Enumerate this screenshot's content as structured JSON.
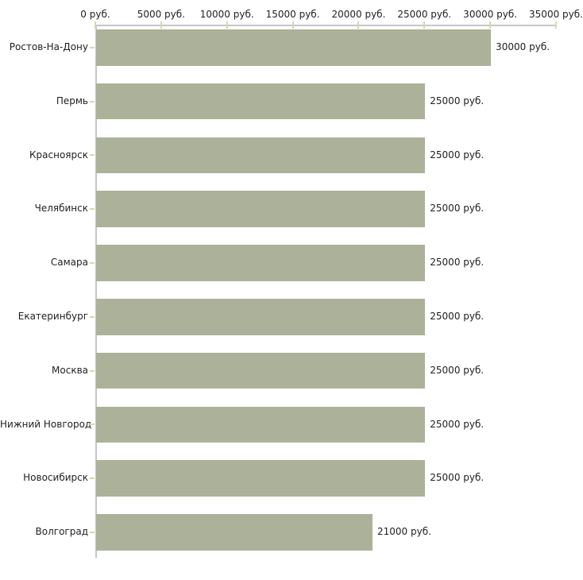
{
  "chart_data": {
    "type": "bar",
    "orientation": "horizontal",
    "title": "",
    "unit": "руб.",
    "categories": [
      "Ростов-На-Дону",
      "Пермь",
      "Красноярск",
      "Челябинск",
      "Самара",
      "Екатеринбург",
      "Москва",
      "Нижний Новгород",
      "Новосибирск",
      "Волгоград"
    ],
    "values": [
      30000,
      25000,
      25000,
      25000,
      25000,
      25000,
      25000,
      25000,
      25000,
      21000
    ],
    "value_labels": [
      "30000 руб.",
      "25000 руб.",
      "25000 руб.",
      "25000 руб.",
      "25000 руб.",
      "25000 руб.",
      "25000 руб.",
      "25000 руб.",
      "25000 руб.",
      "21000 руб."
    ],
    "x_axis": {
      "position": "top",
      "min": 0,
      "max": 35000,
      "tick_step": 5000,
      "ticks": [
        0,
        5000,
        10000,
        15000,
        20000,
        25000,
        30000,
        35000
      ],
      "tick_labels": [
        "0 руб.",
        "5000 руб.",
        "10000 руб.",
        "15000 руб.",
        "20000 руб.",
        "25000 руб.",
        "30000 руб.",
        "35000 руб."
      ]
    },
    "legend": "none",
    "grid": false,
    "colors": {
      "bar": "#abb299",
      "axis": "#c6c6c6",
      "tick": "#d5d8ad",
      "text": "#1f1f1f",
      "background": "#ffffff"
    }
  }
}
